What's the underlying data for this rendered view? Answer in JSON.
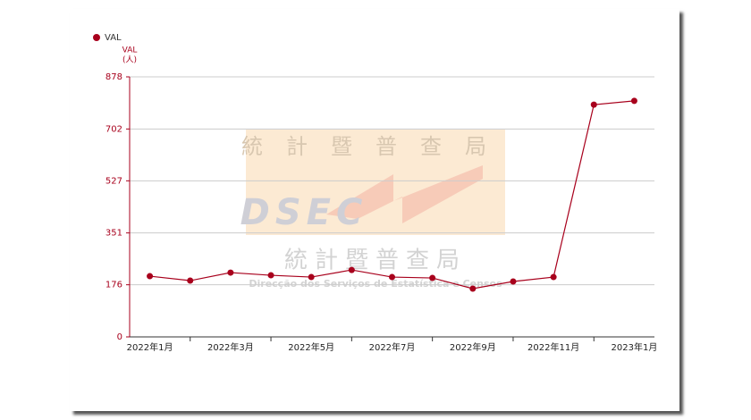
{
  "chart_data": {
    "type": "line",
    "legend": "VAL",
    "y_label": "VAL",
    "y_unit": "(人)",
    "watermark": {
      "chinese": "統計暨普查局",
      "logo": "DSEC",
      "chinese_lower": "統計暨普查局",
      "portuguese": "Direcção dos Serviços de Estatística e Censos"
    },
    "categories": [
      "2022年1月",
      null,
      "2022年3月",
      null,
      "2022年5月",
      null,
      "2022年7月",
      null,
      "2022年9月",
      null,
      "2022年11月",
      null,
      "2023年1月"
    ],
    "series": [
      {
        "name": "VAL",
        "color": "#a8001c",
        "values": [
          205,
          190,
          217,
          208,
          202,
          226,
          202,
          199,
          163,
          187,
          202,
          784,
          797
        ]
      }
    ],
    "ylim": [
      0,
      878
    ],
    "yticks": [
      0,
      176,
      351,
      527,
      702,
      878
    ],
    "grid": true
  }
}
